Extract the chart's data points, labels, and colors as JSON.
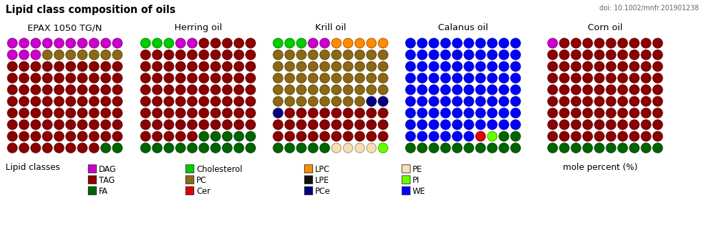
{
  "title": "Lipid class composition of oils",
  "doi": "doi: 10.1002/mnfr.201901238",
  "oil_labels": [
    "EPAX 1050 TG/N",
    "Herring oil",
    "Krill oil",
    "Calanus oil",
    "Corn oil"
  ],
  "legend_label": "Lipid classes",
  "mole_percent": "mole percent (%)",
  "colors": {
    "DAG": "#cc00cc",
    "TAG": "#8b0000",
    "FA": "#006400",
    "Cholesterol": "#00cc00",
    "PC": "#8b6914",
    "Cer": "#dd0000",
    "LPC": "#ff8c00",
    "LPE": "#111111",
    "PCe": "#000080",
    "PE": "#f5deb3",
    "PI": "#66ff00",
    "WE": "#0000ff"
  },
  "grid_rows": 10,
  "grid_cols": 10,
  "oils": {
    "EPAX 1050 TG/N": [
      "DAG",
      "DAG",
      "DAG",
      "DAG",
      "DAG",
      "DAG",
      "DAG",
      "DAG",
      "DAG",
      "DAG",
      "DAG",
      "DAG",
      "DAG",
      "PC",
      "PC",
      "PC",
      "PC",
      "PC",
      "PC",
      "PC",
      "TAG",
      "TAG",
      "TAG",
      "TAG",
      "TAG",
      "TAG",
      "TAG",
      "TAG",
      "TAG",
      "TAG",
      "TAG",
      "TAG",
      "TAG",
      "TAG",
      "TAG",
      "TAG",
      "TAG",
      "TAG",
      "TAG",
      "TAG",
      "TAG",
      "TAG",
      "TAG",
      "TAG",
      "TAG",
      "TAG",
      "TAG",
      "TAG",
      "TAG",
      "TAG",
      "TAG",
      "TAG",
      "TAG",
      "TAG",
      "TAG",
      "TAG",
      "TAG",
      "TAG",
      "TAG",
      "TAG",
      "TAG",
      "TAG",
      "TAG",
      "TAG",
      "TAG",
      "TAG",
      "TAG",
      "TAG",
      "TAG",
      "TAG",
      "TAG",
      "TAG",
      "TAG",
      "TAG",
      "TAG",
      "TAG",
      "TAG",
      "TAG",
      "TAG",
      "TAG",
      "TAG",
      "TAG",
      "TAG",
      "TAG",
      "TAG",
      "TAG",
      "TAG",
      "TAG",
      "TAG",
      "TAG",
      "TAG",
      "TAG",
      "TAG",
      "TAG",
      "TAG",
      "TAG",
      "TAG",
      "TAG",
      "FA",
      "FA"
    ],
    "Herring oil": [
      "Cholesterol",
      "Cholesterol",
      "Cholesterol",
      "DAG",
      "DAG",
      "TAG",
      "TAG",
      "TAG",
      "TAG",
      "TAG",
      "TAG",
      "TAG",
      "TAG",
      "TAG",
      "TAG",
      "TAG",
      "TAG",
      "TAG",
      "TAG",
      "TAG",
      "TAG",
      "TAG",
      "TAG",
      "TAG",
      "TAG",
      "TAG",
      "TAG",
      "TAG",
      "TAG",
      "TAG",
      "TAG",
      "TAG",
      "TAG",
      "TAG",
      "TAG",
      "TAG",
      "TAG",
      "TAG",
      "TAG",
      "TAG",
      "TAG",
      "TAG",
      "TAG",
      "TAG",
      "TAG",
      "TAG",
      "TAG",
      "TAG",
      "TAG",
      "TAG",
      "TAG",
      "TAG",
      "TAG",
      "TAG",
      "TAG",
      "TAG",
      "TAG",
      "TAG",
      "TAG",
      "TAG",
      "TAG",
      "TAG",
      "TAG",
      "TAG",
      "TAG",
      "TAG",
      "TAG",
      "TAG",
      "TAG",
      "TAG",
      "TAG",
      "TAG",
      "TAG",
      "TAG",
      "TAG",
      "TAG",
      "TAG",
      "TAG",
      "TAG",
      "TAG",
      "TAG",
      "TAG",
      "TAG",
      "TAG",
      "TAG",
      "FA",
      "FA",
      "FA",
      "FA",
      "FA",
      "FA",
      "FA",
      "FA",
      "FA",
      "FA",
      "FA",
      "FA",
      "FA",
      "FA",
      "FA"
    ],
    "Krill oil": [
      "Cholesterol",
      "Cholesterol",
      "Cholesterol",
      "DAG",
      "DAG",
      "LPC",
      "LPC",
      "LPC",
      "LPC",
      "LPC",
      "PC",
      "PC",
      "PC",
      "PC",
      "PC",
      "PC",
      "PC",
      "PC",
      "PC",
      "PC",
      "PC",
      "PC",
      "PC",
      "PC",
      "PC",
      "PC",
      "PC",
      "PC",
      "PC",
      "PC",
      "PC",
      "PC",
      "PC",
      "PC",
      "PC",
      "PC",
      "PC",
      "PC",
      "PC",
      "PC",
      "PC",
      "PC",
      "PC",
      "PC",
      "PC",
      "PC",
      "PC",
      "PC",
      "PC",
      "PC",
      "PC",
      "PC",
      "PC",
      "PC",
      "PC",
      "PC",
      "PC",
      "PC",
      "PCe",
      "PCe",
      "PCe",
      "TAG",
      "TAG",
      "TAG",
      "TAG",
      "TAG",
      "TAG",
      "TAG",
      "TAG",
      "TAG",
      "TAG",
      "TAG",
      "TAG",
      "TAG",
      "TAG",
      "TAG",
      "TAG",
      "TAG",
      "TAG",
      "TAG",
      "TAG",
      "TAG",
      "TAG",
      "TAG",
      "TAG",
      "TAG",
      "TAG",
      "TAG",
      "TAG",
      "TAG",
      "FA",
      "FA",
      "FA",
      "FA",
      "FA",
      "PE",
      "PE",
      "PE",
      "PE",
      "PI"
    ],
    "Calanus oil": [
      "WE",
      "WE",
      "WE",
      "WE",
      "WE",
      "WE",
      "WE",
      "WE",
      "WE",
      "WE",
      "WE",
      "WE",
      "WE",
      "WE",
      "WE",
      "WE",
      "WE",
      "WE",
      "WE",
      "WE",
      "WE",
      "WE",
      "WE",
      "WE",
      "WE",
      "WE",
      "WE",
      "WE",
      "WE",
      "WE",
      "WE",
      "WE",
      "WE",
      "WE",
      "WE",
      "WE",
      "WE",
      "WE",
      "WE",
      "WE",
      "WE",
      "WE",
      "WE",
      "WE",
      "WE",
      "WE",
      "WE",
      "WE",
      "WE",
      "WE",
      "WE",
      "WE",
      "WE",
      "WE",
      "WE",
      "WE",
      "WE",
      "WE",
      "WE",
      "WE",
      "WE",
      "WE",
      "WE",
      "WE",
      "WE",
      "WE",
      "WE",
      "WE",
      "WE",
      "WE",
      "WE",
      "WE",
      "WE",
      "WE",
      "WE",
      "WE",
      "WE",
      "WE",
      "WE",
      "WE",
      "WE",
      "WE",
      "WE",
      "WE",
      "WE",
      "WE",
      "Cer",
      "PI",
      "FA",
      "FA",
      "FA",
      "FA",
      "FA",
      "FA",
      "FA",
      "FA",
      "FA",
      "FA",
      "FA",
      "FA"
    ],
    "Corn oil": [
      "DAG",
      "TAG",
      "TAG",
      "TAG",
      "TAG",
      "TAG",
      "TAG",
      "TAG",
      "TAG",
      "TAG",
      "TAG",
      "TAG",
      "TAG",
      "TAG",
      "TAG",
      "TAG",
      "TAG",
      "TAG",
      "TAG",
      "TAG",
      "TAG",
      "TAG",
      "TAG",
      "TAG",
      "TAG",
      "TAG",
      "TAG",
      "TAG",
      "TAG",
      "TAG",
      "TAG",
      "TAG",
      "TAG",
      "TAG",
      "TAG",
      "TAG",
      "TAG",
      "TAG",
      "TAG",
      "TAG",
      "TAG",
      "TAG",
      "TAG",
      "TAG",
      "TAG",
      "TAG",
      "TAG",
      "TAG",
      "TAG",
      "TAG",
      "TAG",
      "TAG",
      "TAG",
      "TAG",
      "TAG",
      "TAG",
      "TAG",
      "TAG",
      "TAG",
      "TAG",
      "TAG",
      "TAG",
      "TAG",
      "TAG",
      "TAG",
      "TAG",
      "TAG",
      "TAG",
      "TAG",
      "TAG",
      "TAG",
      "TAG",
      "TAG",
      "TAG",
      "TAG",
      "TAG",
      "TAG",
      "TAG",
      "TAG",
      "TAG",
      "TAG",
      "TAG",
      "TAG",
      "TAG",
      "TAG",
      "TAG",
      "TAG",
      "TAG",
      "TAG",
      "TAG",
      "FA",
      "FA",
      "FA",
      "FA",
      "FA",
      "FA",
      "FA",
      "FA",
      "FA",
      "FA"
    ]
  }
}
